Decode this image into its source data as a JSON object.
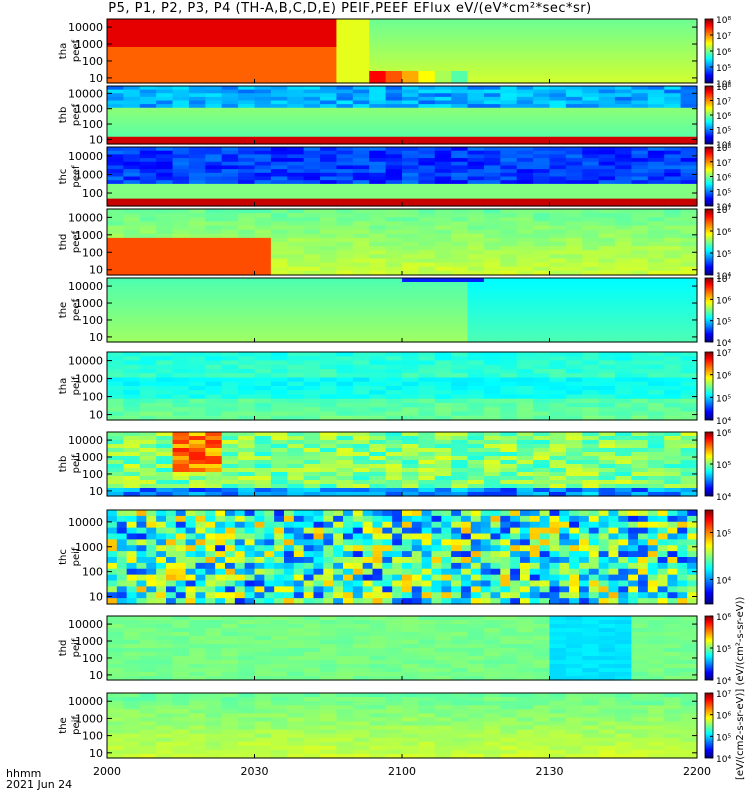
{
  "title": "P5, P1, P2, P3, P4 (TH-A,B,C,D,E) PEIF,PEEF EFlux eV/(eV*cm²*sec*sr)",
  "footer": {
    "axis_name": "hhmm",
    "date": "2021 Jun 24"
  },
  "colorbar_unit_label": "[eV/(cm2-s-sr-eV)] (eV/(cm²-s-sr-eV))",
  "colormap": [
    "#000080",
    "#0000ff",
    "#00a0ff",
    "#00ffff",
    "#80ff80",
    "#ffff00",
    "#ff8000",
    "#ff0000",
    "#800000"
  ],
  "chart_data": {
    "type": "heatmap",
    "subtype": "energy-time spectrogram stack",
    "x": {
      "label": "hhmm",
      "range": [
        "2000",
        "2200"
      ],
      "ticks": [
        "2000",
        "2030",
        "2100",
        "2130",
        "2200"
      ]
    },
    "y_scale": "log",
    "panels": [
      {
        "id": "tha-peef",
        "label": [
          "tha",
          "peef"
        ],
        "ylim": [
          5,
          30000
        ],
        "yticks": [
          "10",
          "100",
          "1000",
          "10000"
        ],
        "cbar_ticks": [
          "10⁴",
          "10⁵",
          "10⁶",
          "10⁷",
          "10⁸"
        ],
        "cbar_range": [
          10000.0,
          100000000.0
        ]
      },
      {
        "id": "thb-peef",
        "label": [
          "thb",
          "peef"
        ],
        "ylim": [
          5,
          30000
        ],
        "yticks": [
          "10",
          "100",
          "1000",
          "10000"
        ],
        "cbar_ticks": [
          "10⁴",
          "10⁵",
          "10⁶",
          "10⁷",
          "10⁸"
        ],
        "cbar_range": [
          10000.0,
          100000000.0
        ]
      },
      {
        "id": "thc-peef",
        "label": [
          "thc",
          "peef"
        ],
        "ylim": [
          20,
          30000
        ],
        "yticks": [
          "100",
          "1000",
          "10000"
        ],
        "cbar_ticks": [
          "10⁴",
          "10⁵",
          "10⁶",
          "10⁷",
          "10⁸"
        ],
        "cbar_range": [
          10000.0,
          100000000.0
        ]
      },
      {
        "id": "thd-peef",
        "label": [
          "thd",
          "peef"
        ],
        "ylim": [
          5,
          30000
        ],
        "yticks": [
          "10",
          "100",
          "1000",
          "10000"
        ],
        "cbar_ticks": [
          "10⁴",
          "10⁵",
          "10⁶",
          "10⁷"
        ],
        "cbar_range": [
          10000.0,
          10000000.0
        ]
      },
      {
        "id": "the-peef",
        "label": [
          "the",
          "peef"
        ],
        "ylim": [
          5,
          30000
        ],
        "yticks": [
          "10",
          "100",
          "1000",
          "10000"
        ],
        "cbar_ticks": [
          "10⁴",
          "10⁵",
          "10⁶",
          "10⁷"
        ],
        "cbar_range": [
          10000.0,
          10000000.0
        ]
      },
      {
        "id": "tha-peif",
        "label": [
          "tha",
          "peif"
        ],
        "ylim": [
          5,
          30000
        ],
        "yticks": [
          "10",
          "100",
          "1000",
          "10000"
        ],
        "cbar_ticks": [
          "10⁴",
          "10⁵",
          "10⁶",
          "10⁷"
        ],
        "cbar_range": [
          10000.0,
          10000000.0
        ]
      },
      {
        "id": "thb-peif",
        "label": [
          "thb",
          "peif"
        ],
        "ylim": [
          5,
          30000
        ],
        "yticks": [
          "10",
          "100",
          "1000",
          "10000"
        ],
        "cbar_ticks": [
          "10⁴",
          "10⁵",
          "10⁶"
        ],
        "cbar_range": [
          10000.0,
          1000000.0
        ]
      },
      {
        "id": "thc-peif",
        "label": [
          "thc",
          "peif"
        ],
        "ylim": [
          5,
          30000
        ],
        "yticks": [
          "10",
          "100",
          "1000",
          "10000"
        ],
        "cbar_ticks": [
          "10⁴",
          "10⁵"
        ],
        "cbar_range": [
          3000.0,
          300000.0
        ]
      },
      {
        "id": "thd-peif",
        "label": [
          "thd",
          "peif"
        ],
        "ylim": [
          5,
          30000
        ],
        "yticks": [
          "10",
          "100",
          "1000",
          "10000"
        ],
        "cbar_ticks": [
          "10⁴",
          "10⁵",
          "10⁶"
        ],
        "cbar_range": [
          10000.0,
          1000000.0
        ]
      },
      {
        "id": "the-peif",
        "label": [
          "the",
          "peif"
        ],
        "ylim": [
          5,
          30000
        ],
        "yticks": [
          "10",
          "100",
          "1000",
          "10000"
        ],
        "cbar_ticks": [
          "10⁴",
          "10⁵",
          "10⁶",
          "10⁷"
        ],
        "cbar_range": [
          10000.0,
          10000000.0
        ]
      }
    ]
  }
}
